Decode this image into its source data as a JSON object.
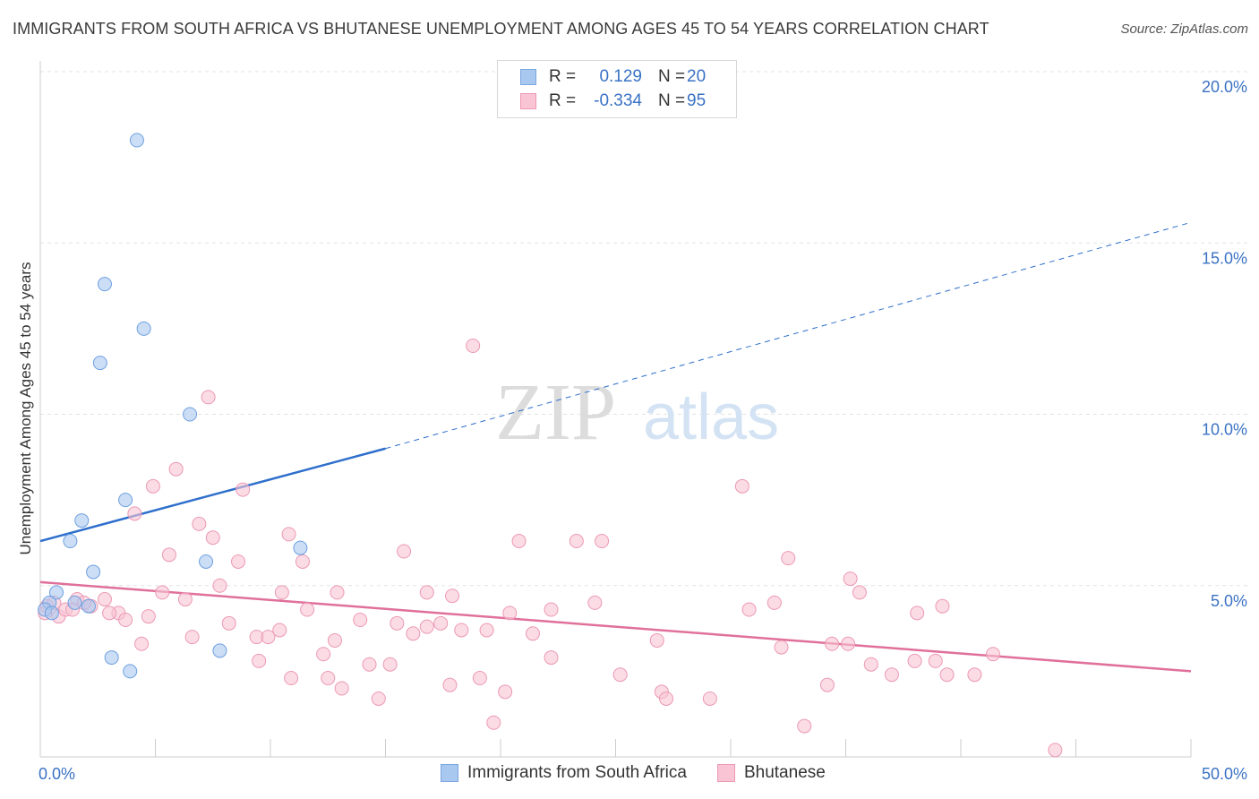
{
  "title": "IMMIGRANTS FROM SOUTH AFRICA VS BHUTANESE UNEMPLOYMENT AMONG AGES 45 TO 54 YEARS CORRELATION CHART",
  "source": "Source: ZipAtlas.com",
  "watermark": {
    "zip": "ZIP",
    "atlas": "atlas"
  },
  "legend": {
    "rows": [
      {
        "r_label": "R =",
        "r_value": "0.129",
        "n_label": "N =",
        "n_value": "20",
        "color": "#a9c8f0",
        "border": "#7aa6e0"
      },
      {
        "r_label": "R =",
        "r_value": "-0.334",
        "n_label": "N =",
        "n_value": "95",
        "color": "#f9c4d4",
        "border": "#ec98b4"
      }
    ]
  },
  "chart_data": {
    "type": "scatter",
    "title": "IMMIGRANTS FROM SOUTH AFRICA VS BHUTANESE UNEMPLOYMENT AMONG AGES 45 TO 54 YEARS CORRELATION CHART",
    "xlabel": "",
    "ylabel": "Unemployment Among Ages 45 to 54 years",
    "xlim": [
      0,
      50
    ],
    "ylim": [
      0,
      20
    ],
    "x_tick_labels": [
      "0.0%",
      "50.0%"
    ],
    "y_tick_labels": [
      "5.0%",
      "10.0%",
      "15.0%",
      "20.0%"
    ],
    "y_ticks": [
      5,
      10,
      15,
      20
    ],
    "grid": true,
    "series": [
      {
        "name": "Immigrants from South Africa",
        "color": "#a9c8f0",
        "stroke": "#6d9fe0",
        "line_color": "#2e6fcc",
        "trend": {
          "x0": 0,
          "y0": 6.3,
          "x1": 15,
          "y1": 9.0,
          "x_ext": 50,
          "y_ext": 15.6
        },
        "points": [
          [
            4.2,
            18.0
          ],
          [
            2.8,
            13.8
          ],
          [
            4.5,
            12.5
          ],
          [
            2.6,
            11.5
          ],
          [
            6.5,
            10.0
          ],
          [
            3.7,
            7.5
          ],
          [
            1.8,
            6.9
          ],
          [
            1.3,
            6.3
          ],
          [
            11.3,
            6.1
          ],
          [
            7.2,
            5.7
          ],
          [
            2.3,
            5.4
          ],
          [
            0.7,
            4.8
          ],
          [
            0.4,
            4.5
          ],
          [
            1.5,
            4.5
          ],
          [
            0.2,
            4.3
          ],
          [
            0.5,
            4.2
          ],
          [
            2.1,
            4.4
          ],
          [
            3.1,
            2.9
          ],
          [
            3.9,
            2.5
          ],
          [
            7.8,
            3.1
          ]
        ]
      },
      {
        "name": "Bhutanese",
        "color": "#f9c4d4",
        "stroke": "#ec98b4",
        "line_color": "#e0709a",
        "trend": {
          "x0": 0,
          "y0": 5.1,
          "x1": 50,
          "y1": 2.5
        },
        "points": [
          [
            18.8,
            12.0
          ],
          [
            7.3,
            10.5
          ],
          [
            5.9,
            8.4
          ],
          [
            4.9,
            7.9
          ],
          [
            8.8,
            7.8
          ],
          [
            30.5,
            7.9
          ],
          [
            4.1,
            7.1
          ],
          [
            6.9,
            6.8
          ],
          [
            7.5,
            6.4
          ],
          [
            10.8,
            6.5
          ],
          [
            15.8,
            6.0
          ],
          [
            20.8,
            6.3
          ],
          [
            23.3,
            6.3
          ],
          [
            24.4,
            6.3
          ],
          [
            5.6,
            5.9
          ],
          [
            8.6,
            5.7
          ],
          [
            11.4,
            5.7
          ],
          [
            32.5,
            5.8
          ],
          [
            7.8,
            5.0
          ],
          [
            35.2,
            5.2
          ],
          [
            5.3,
            4.8
          ],
          [
            10.5,
            4.8
          ],
          [
            12.9,
            4.8
          ],
          [
            16.8,
            4.8
          ],
          [
            35.6,
            4.8
          ],
          [
            6.3,
            4.6
          ],
          [
            2.8,
            4.6
          ],
          [
            17.9,
            4.7
          ],
          [
            24.1,
            4.5
          ],
          [
            31.9,
            4.5
          ],
          [
            39.2,
            4.4
          ],
          [
            1.6,
            4.6
          ],
          [
            2.2,
            4.4
          ],
          [
            3.4,
            4.2
          ],
          [
            11.6,
            4.3
          ],
          [
            20.4,
            4.2
          ],
          [
            22.2,
            4.3
          ],
          [
            30.8,
            4.3
          ],
          [
            38.1,
            4.2
          ],
          [
            3.0,
            4.2
          ],
          [
            4.7,
            4.1
          ],
          [
            3.7,
            4.0
          ],
          [
            8.2,
            3.9
          ],
          [
            13.9,
            4.0
          ],
          [
            15.5,
            3.9
          ],
          [
            17.4,
            3.9
          ],
          [
            10.4,
            3.7
          ],
          [
            16.2,
            3.6
          ],
          [
            16.8,
            3.8
          ],
          [
            18.3,
            3.7
          ],
          [
            19.4,
            3.7
          ],
          [
            21.4,
            3.6
          ],
          [
            9.4,
            3.5
          ],
          [
            9.9,
            3.5
          ],
          [
            12.8,
            3.4
          ],
          [
            6.6,
            3.5
          ],
          [
            4.4,
            3.3
          ],
          [
            26.8,
            3.4
          ],
          [
            32.2,
            3.2
          ],
          [
            34.4,
            3.3
          ],
          [
            35.1,
            3.3
          ],
          [
            12.3,
            3.0
          ],
          [
            15.2,
            2.7
          ],
          [
            9.5,
            2.8
          ],
          [
            14.3,
            2.7
          ],
          [
            22.2,
            2.9
          ],
          [
            41.4,
            3.0
          ],
          [
            36.1,
            2.7
          ],
          [
            38.0,
            2.8
          ],
          [
            38.9,
            2.8
          ],
          [
            25.2,
            2.4
          ],
          [
            37.0,
            2.4
          ],
          [
            39.4,
            2.4
          ],
          [
            40.6,
            2.4
          ],
          [
            10.9,
            2.3
          ],
          [
            12.5,
            2.3
          ],
          [
            19.1,
            2.3
          ],
          [
            17.8,
            2.1
          ],
          [
            13.1,
            2.0
          ],
          [
            20.2,
            1.9
          ],
          [
            27.0,
            1.9
          ],
          [
            27.2,
            1.7
          ],
          [
            29.1,
            1.7
          ],
          [
            34.2,
            2.1
          ],
          [
            14.7,
            1.7
          ],
          [
            19.7,
            1.0
          ],
          [
            33.2,
            0.9
          ],
          [
            44.1,
            0.2
          ],
          [
            0.8,
            4.1
          ],
          [
            0.3,
            4.4
          ],
          [
            1.1,
            4.3
          ],
          [
            0.6,
            4.5
          ],
          [
            0.2,
            4.2
          ],
          [
            1.4,
            4.3
          ],
          [
            1.9,
            4.5
          ]
        ]
      }
    ]
  },
  "bottom_legend": {
    "items": [
      {
        "label": "Immigrants from South Africa",
        "color": "#a9c8f0",
        "border": "#7aa6e0"
      },
      {
        "label": "Bhutanese",
        "color": "#f9c4d4",
        "border": "#ec98b4"
      }
    ]
  }
}
